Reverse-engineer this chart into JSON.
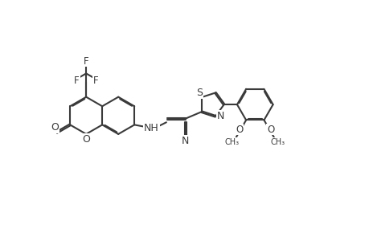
{
  "bg_color": "#ffffff",
  "line_color": "#3a3a3a",
  "line_width": 1.5,
  "font_size": 9.0,
  "figsize": [
    4.6,
    3.0
  ],
  "dpi": 100,
  "xlim": [
    0.0,
    9.2
  ],
  "ylim": [
    0.0,
    6.0
  ]
}
